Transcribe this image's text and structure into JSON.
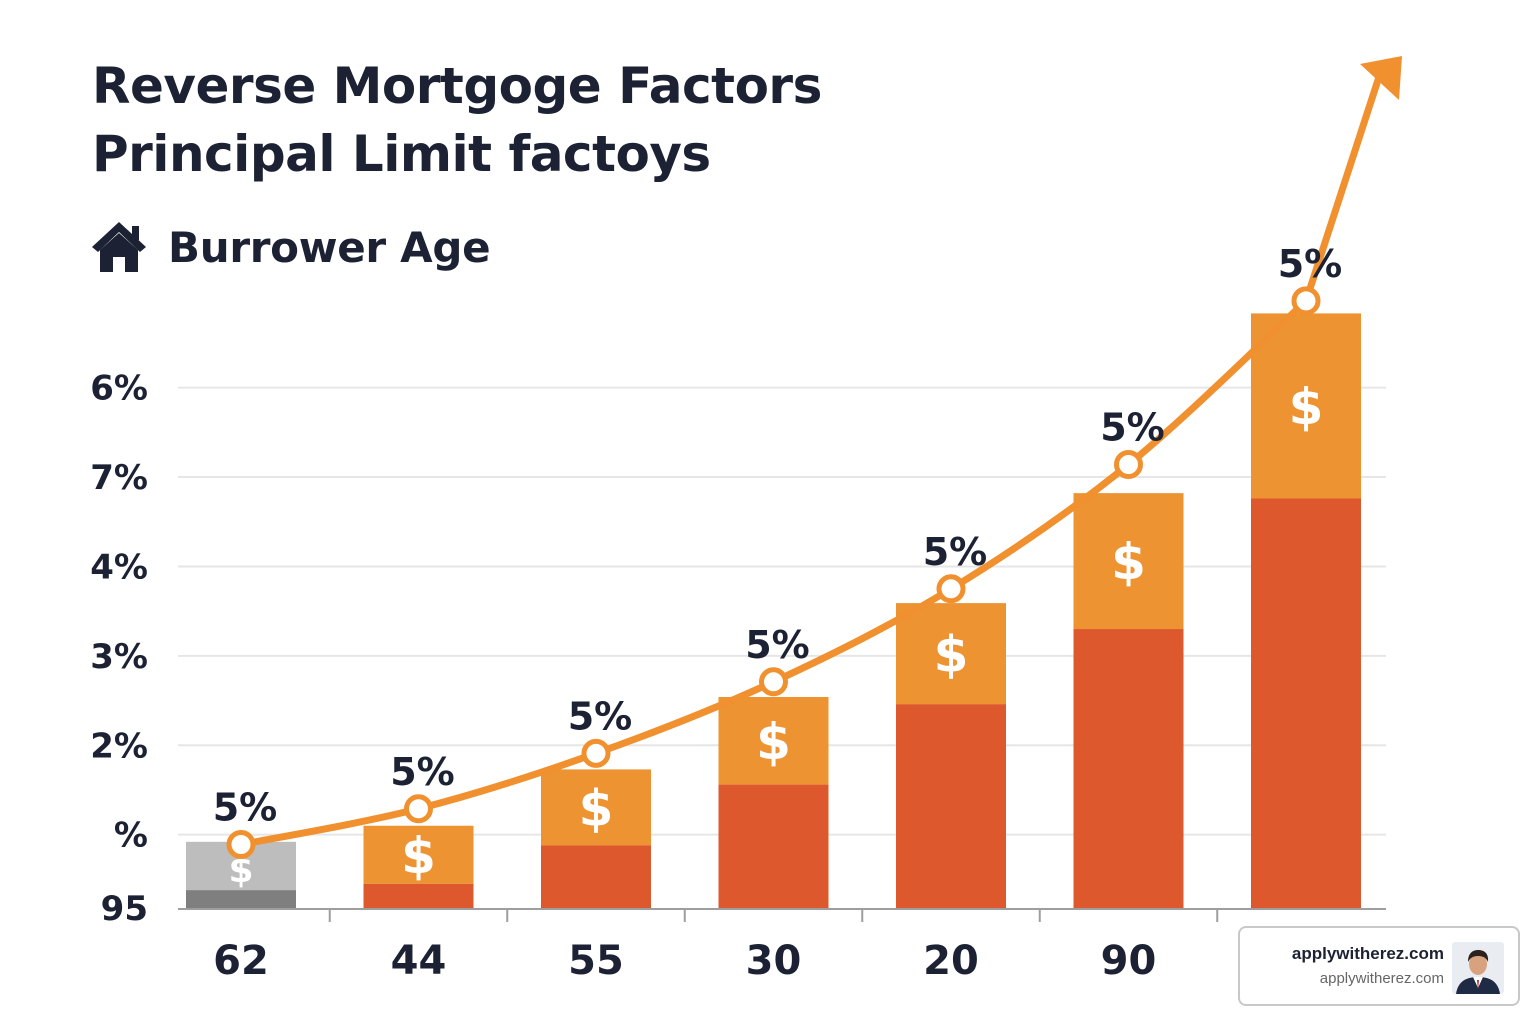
{
  "title": [
    "Reverse Mortgoge Factors",
    "Principal Limit factoys"
  ],
  "subtitle": "Burrower Age",
  "colors": {
    "bar_bottom": "#dd582d",
    "bar_top": "#ed9332",
    "bar_first_top": "#bdbdbd",
    "bar_first_bottom": "#7f7f7f",
    "line": "#f0902e",
    "grid": "#e6e6e6",
    "text": "#1c2233"
  },
  "icons": {
    "subtitle_icon": "house-icon",
    "bar_icon": "dollar-icon",
    "avatar": "person-avatar-icon"
  },
  "chart_data": {
    "type": "bar",
    "categories": [
      "62",
      "44",
      "55",
      "30",
      "20",
      "90",
      ""
    ],
    "ytick_labels": [
      "95",
      "%",
      "2%",
      "3%",
      "4%",
      "7%",
      "6%"
    ],
    "series": [
      {
        "values": [
          0.2,
          0.27,
          0.7,
          1.38,
          2.28,
          3.12,
          4.58
        ]
      },
      {
        "values": [
          0.54,
          0.65,
          0.85,
          0.98,
          1.13,
          1.52,
          2.07
        ]
      }
    ],
    "line": {
      "values": [
        0.71,
        1.11,
        1.73,
        2.53,
        3.57,
        4.96,
        6.79
      ],
      "labels": [
        "5%",
        "5%",
        "5%",
        "5%",
        "5%",
        "5%",
        "5%"
      ]
    },
    "bar_symbol": "$",
    "grid": true,
    "ylim": [
      0,
      6.8
    ]
  },
  "watermark": {
    "title": "applywitherez.com",
    "subtitle": "applywitherez.com"
  }
}
